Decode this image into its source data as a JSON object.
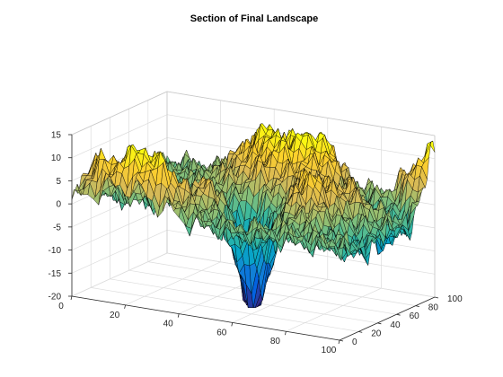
{
  "chart_data": {
    "type": "surface",
    "title": "Section of Final Landscape",
    "xlabel": "",
    "ylabel": "",
    "zlabel": "",
    "xlim": [
      0,
      100
    ],
    "ylim": [
      0,
      100
    ],
    "zlim": [
      -20,
      15
    ],
    "x_ticks": [
      0,
      20,
      40,
      60,
      80,
      100
    ],
    "y_ticks": [
      0,
      20,
      40,
      60,
      80,
      100
    ],
    "z_ticks": [
      -20,
      -15,
      -10,
      -5,
      0,
      5,
      10,
      15
    ],
    "x_tick_labels": [
      "0",
      "20",
      "40",
      "60",
      "80",
      "100"
    ],
    "y_tick_labels": [
      "0",
      "20",
      "40",
      "60",
      "80",
      "100"
    ],
    "z_tick_labels": [
      "-20",
      "-15",
      "-10",
      "-5",
      "0",
      "5",
      "10",
      "15"
    ],
    "grid": true,
    "colormap": "parula",
    "colormap_colors": [
      "#352a87",
      "#0363e1",
      "#1485d4",
      "#06a7c6",
      "#38b99e",
      "#92bf73",
      "#d9ba56",
      "#fcce2e",
      "#f9fb0e"
    ],
    "edge_color": "#000000",
    "approximate_profile_y": [
      "x 0-40: ridge with peaks near +10 to +12 along front edge",
      "x 55-65: deep pit near -17 at y ~ 20-40",
      "x 40-60, y 60-90: rough ridge near +10",
      "x 100, y 90-100: rise to +11"
    ]
  }
}
